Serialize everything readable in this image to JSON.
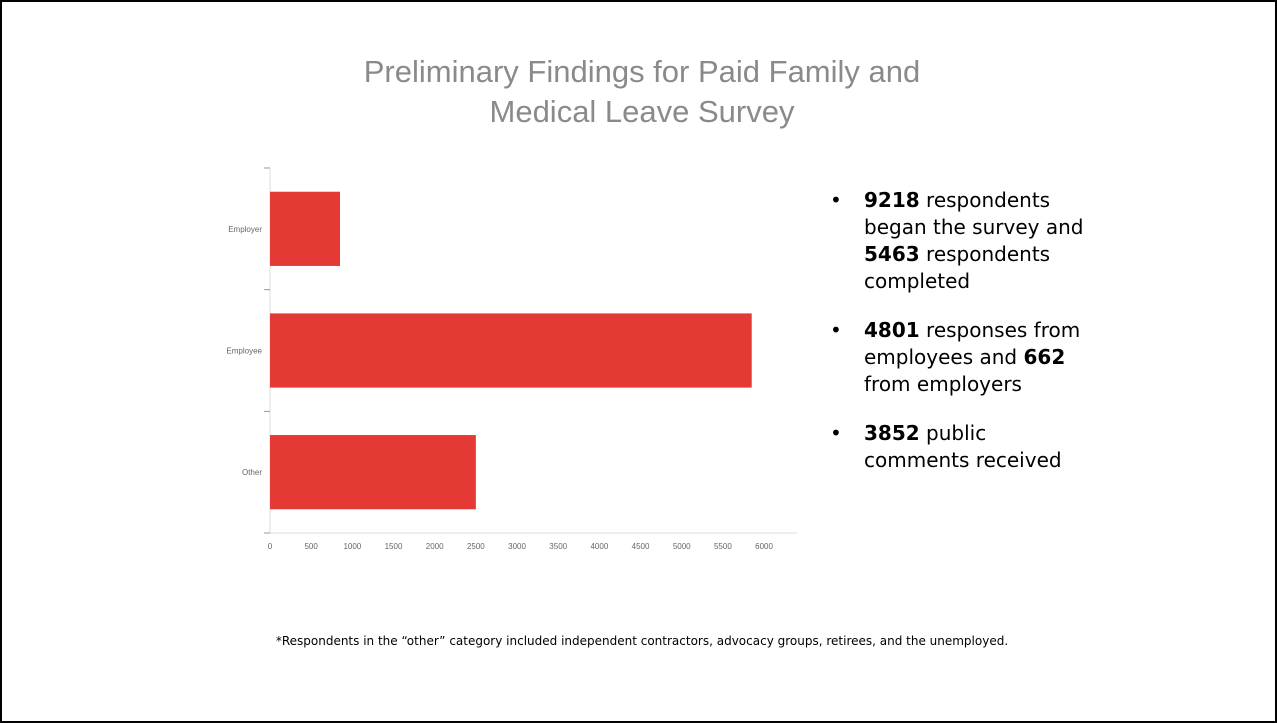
{
  "slide": {
    "title_line1": "Preliminary Findings for Paid Family and",
    "title_line2": "Medical Leave Survey",
    "bullets": [
      {
        "b1": "9218",
        "t1": " respondents began the survey and ",
        "b2": "5463",
        "t2": " respondents completed"
      },
      {
        "b1": "4801",
        "t1": " responses from employees and ",
        "b2": "662",
        "t2": " from employers"
      },
      {
        "b1": "3852",
        "t1": " public comments received",
        "b2": "",
        "t2": ""
      }
    ],
    "footnote": "*Respondents in the “other” category included independent contractors, advocacy groups, retirees, and the unemployed."
  },
  "colors": {
    "bar": "#e53935",
    "axis": "#dddddd",
    "tick_text": "#666666",
    "title": "#8a8a8a"
  },
  "chart_data": {
    "type": "bar",
    "orientation": "horizontal",
    "categories": [
      "Employer",
      "Employee",
      "Other"
    ],
    "values": [
      850,
      5850,
      2500
    ],
    "xlim": [
      0,
      6400
    ],
    "xticks": [
      0,
      500,
      1000,
      1500,
      2000,
      2500,
      3000,
      3500,
      4000,
      4500,
      5000,
      5500,
      6000
    ],
    "title": "",
    "xlabel": "",
    "ylabel": "",
    "grid": false
  }
}
